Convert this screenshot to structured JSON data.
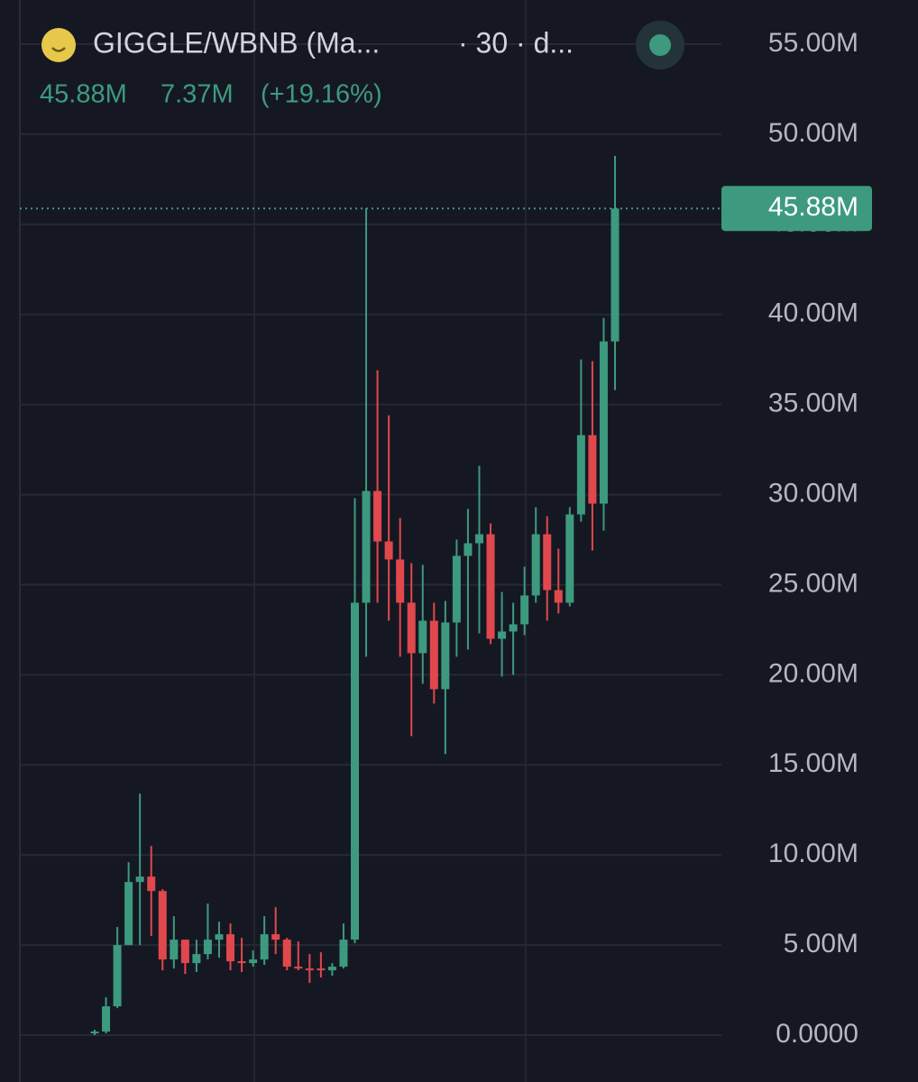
{
  "header": {
    "symbol": "GIGGLE/WBNB (Ma...",
    "interval": "· 30 · d...",
    "price": "45.88M",
    "change": "7.37M",
    "change_pct": "(+19.16%)"
  },
  "chart_data": {
    "type": "candlestick",
    "up_color": "#3d9a7e",
    "down_color": "#e0484d",
    "grid": true,
    "open": [
      100000,
      200000,
      1600000,
      5000000,
      8500000,
      8800000,
      8000000,
      4200000,
      5300000,
      4000000,
      4500000,
      5300000,
      5600000,
      4100000,
      4000000,
      4200000,
      5600000,
      5300000,
      3800000,
      3700000,
      3700000,
      3600000,
      3800000,
      5300000,
      24000000,
      30200000,
      27400000,
      26400000,
      24000000,
      21200000,
      23000000,
      19200000,
      22900000,
      26600000,
      27300000,
      27800000,
      22000000,
      22400000,
      22800000,
      24400000,
      27800000,
      24700000,
      24000000,
      28900000,
      33300000,
      29500000,
      38500000
    ],
    "high": [
      300000,
      2100000,
      6000000,
      9600000,
      13400000,
      10500000,
      8100000,
      6600000,
      5300000,
      5300000,
      7300000,
      6300000,
      6200000,
      5400000,
      4700000,
      6600000,
      7100000,
      5400000,
      5200000,
      4500000,
      4600000,
      4000000,
      6200000,
      29800000,
      45900000,
      36900000,
      34400000,
      28700000,
      26200000,
      26100000,
      24000000,
      24100000,
      27500000,
      29200000,
      31600000,
      28400000,
      24600000,
      24000000,
      26000000,
      29300000,
      28800000,
      27000000,
      29300000,
      37500000,
      37400000,
      39800000,
      48800000
    ],
    "low": [
      0,
      100000,
      1500000,
      5000000,
      5000000,
      5500000,
      3600000,
      3700000,
      3400000,
      3500000,
      4200000,
      4300000,
      3600000,
      3500000,
      3800000,
      3900000,
      4500000,
      3600000,
      3600000,
      2900000,
      3200000,
      3300000,
      3700000,
      5100000,
      21000000,
      24000000,
      23000000,
      21000000,
      16600000,
      19500000,
      18400000,
      15600000,
      21000000,
      21400000,
      22300000,
      21700000,
      19900000,
      20000000,
      22200000,
      24000000,
      23000000,
      23400000,
      23800000,
      28500000,
      26900000,
      28000000,
      35800000
    ],
    "close": [
      200000,
      1600000,
      5000000,
      8500000,
      8800000,
      8000000,
      4200000,
      5300000,
      4000000,
      4500000,
      5300000,
      5600000,
      4100000,
      4000000,
      4200000,
      5600000,
      5300000,
      3800000,
      3700000,
      3600000,
      3600000,
      3800000,
      5300000,
      24000000,
      30200000,
      27400000,
      26400000,
      24000000,
      21200000,
      23000000,
      19200000,
      22900000,
      26600000,
      27300000,
      27800000,
      22000000,
      22400000,
      22800000,
      24400000,
      27800000,
      24700000,
      24000000,
      28900000,
      33300000,
      29500000,
      38500000,
      45880000
    ],
    "ylim": [
      -2600000,
      57450000
    ],
    "yticks": [
      {
        "value": 0,
        "label": "0.0000"
      },
      {
        "value": 5000000,
        "label": "5.00M"
      },
      {
        "value": 10000000,
        "label": "10.00M"
      },
      {
        "value": 15000000,
        "label": "15.00M"
      },
      {
        "value": 20000000,
        "label": "20.00M"
      },
      {
        "value": 25000000,
        "label": "25.00M"
      },
      {
        "value": 30000000,
        "label": "30.00M"
      },
      {
        "value": 35000000,
        "label": "35.00M"
      },
      {
        "value": 40000000,
        "label": "40.00M"
      },
      {
        "value": 45000000,
        "label": "45.00M"
      },
      {
        "value": 50000000,
        "label": "50.00M"
      },
      {
        "value": 55000000,
        "label": "55.00M"
      }
    ],
    "last_price": {
      "value": 45880000,
      "label": "45.88M"
    }
  }
}
